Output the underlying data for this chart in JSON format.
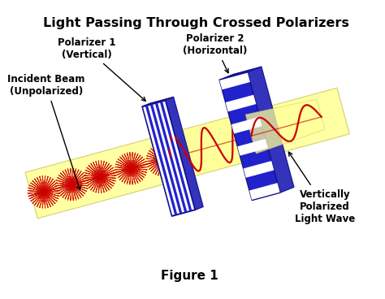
{
  "title": "Light Passing Through Crossed Polarizers",
  "figure_label": "Figure 1",
  "labels": {
    "polarizer1": "Polarizer 1\n(Vertical)",
    "polarizer2": "Polarizer 2\n(Horizontal)",
    "incident": "Incident Beam\n(Unpolarized)",
    "output": "Vertically\nPolarized\nLight Wave"
  },
  "colors": {
    "background": "#ffffff",
    "blue": "#2222cc",
    "blue_dark": "#111188",
    "blue_side": "#1111aa",
    "white": "#ffffff",
    "yellow_beam": "#ffff99",
    "yellow_beam_edge": "#cccc66",
    "red_wave": "#cc0000",
    "black": "#000000",
    "gray_side": "#aaaacc"
  },
  "title_fontsize": 11.5,
  "label_fontsize": 8.5,
  "figure_label_fontsize": 11
}
